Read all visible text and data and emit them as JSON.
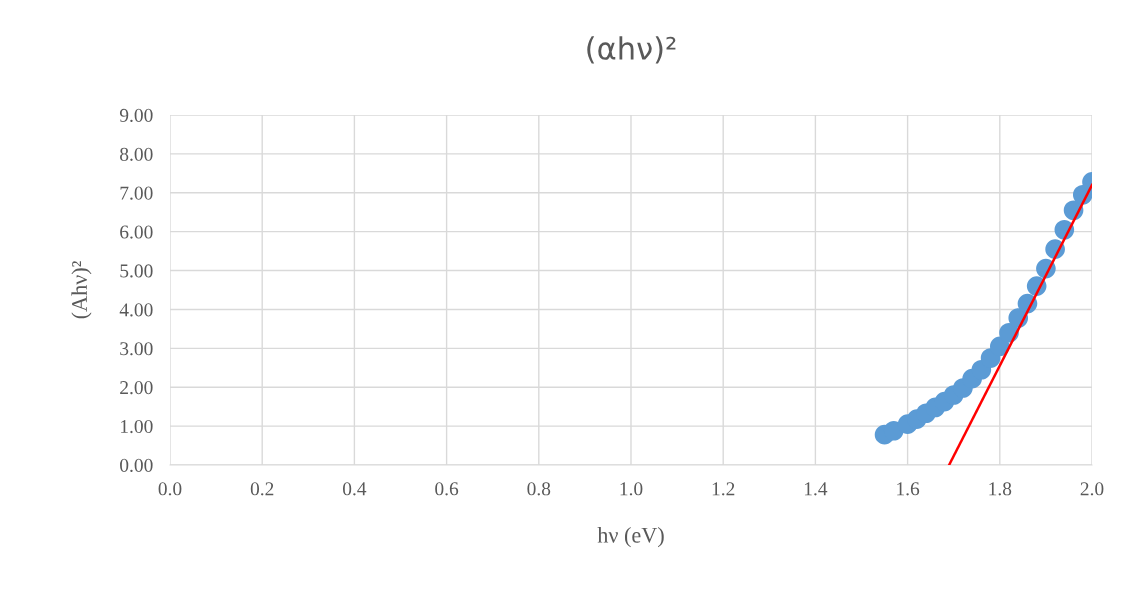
{
  "chart_data": {
    "type": "scatter",
    "title": "(αhν)²",
    "xlabel": "hν (eV)",
    "ylabel": "(Ahν)²",
    "xlim": [
      0,
      2.0
    ],
    "ylim": [
      0,
      9
    ],
    "xticks": [
      {
        "value": 0,
        "label": "0.0"
      },
      {
        "value": 0.2,
        "label": "0.2"
      },
      {
        "value": 0.4,
        "label": "0.4"
      },
      {
        "value": 0.6,
        "label": "0.6"
      },
      {
        "value": 0.8,
        "label": "0.8"
      },
      {
        "value": 1.0,
        "label": "1.0"
      },
      {
        "value": 1.2,
        "label": "1.2"
      },
      {
        "value": 1.4,
        "label": "1.4"
      },
      {
        "value": 1.6,
        "label": "1.6"
      },
      {
        "value": 1.8,
        "label": "1.8"
      },
      {
        "value": 2.0,
        "label": "2.0"
      }
    ],
    "yticks": [
      {
        "value": 0,
        "label": "0.00"
      },
      {
        "value": 1,
        "label": "1.00"
      },
      {
        "value": 2,
        "label": "2.00"
      },
      {
        "value": 3,
        "label": "3.00"
      },
      {
        "value": 4,
        "label": "4.00"
      },
      {
        "value": 5,
        "label": "5.00"
      },
      {
        "value": 6,
        "label": "6.00"
      },
      {
        "value": 7,
        "label": "7.00"
      },
      {
        "value": 8,
        "label": "8.00"
      },
      {
        "value": 9,
        "label": "9.00"
      }
    ],
    "grid": true,
    "series": [
      {
        "marker": "circle",
        "color": "#5b9bd5",
        "x": [
          1.55,
          1.57,
          1.6,
          1.62,
          1.64,
          1.66,
          1.68,
          1.7,
          1.72,
          1.74,
          1.76,
          1.78,
          1.8,
          1.82,
          1.84,
          1.86,
          1.88,
          1.9,
          1.92,
          1.94,
          1.96,
          1.98,
          2.0
        ],
        "values": [
          0.78,
          0.88,
          1.05,
          1.18,
          1.33,
          1.48,
          1.63,
          1.8,
          1.98,
          2.22,
          2.45,
          2.75,
          3.05,
          3.4,
          3.78,
          4.15,
          4.6,
          5.05,
          5.55,
          6.05,
          6.55,
          6.95,
          7.28
        ]
      },
      {
        "type": "line",
        "marker": "none",
        "color": "#ff0000",
        "x": [
          1.69,
          2.0
        ],
        "values": [
          0,
          7.2
        ]
      }
    ]
  }
}
